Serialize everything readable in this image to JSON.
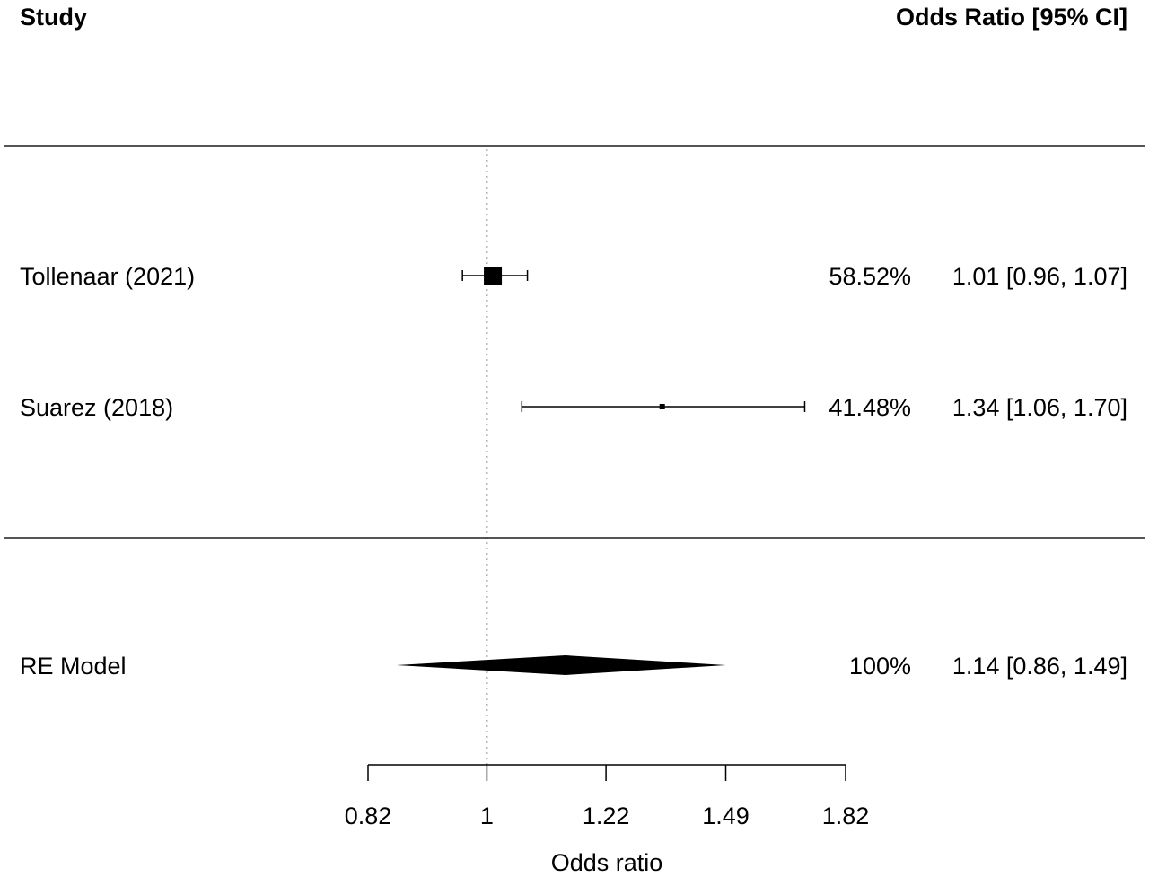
{
  "chart_data": {
    "type": "forest",
    "header": {
      "left": "Study",
      "right": "Odds Ratio [95% CI]"
    },
    "studies": [
      {
        "label": "Tollenaar (2021)",
        "or": 1.01,
        "ci_low": 0.96,
        "ci_high": 1.07,
        "weight": "58.52%",
        "ci_text": "1.01 [0.96, 1.07]"
      },
      {
        "label": "Suarez (2018)",
        "or": 1.34,
        "ci_low": 1.06,
        "ci_high": 1.7,
        "weight": "41.48%",
        "ci_text": "1.34 [1.06, 1.70]"
      }
    ],
    "summary": {
      "label": "RE Model",
      "or": 1.14,
      "ci_low": 0.86,
      "ci_high": 1.49,
      "weight": "100%",
      "ci_text": "1.14 [0.86, 1.49]"
    },
    "reference_value": 1,
    "x_scale": "log",
    "xlim": [
      0.82,
      1.82
    ],
    "x_ticks": [
      0.82,
      1,
      1.22,
      1.49,
      1.82
    ],
    "x_tick_labels": [
      "0.82",
      "1",
      "1.22",
      "1.49",
      "1.82"
    ],
    "xlabel": "Odds ratio"
  }
}
